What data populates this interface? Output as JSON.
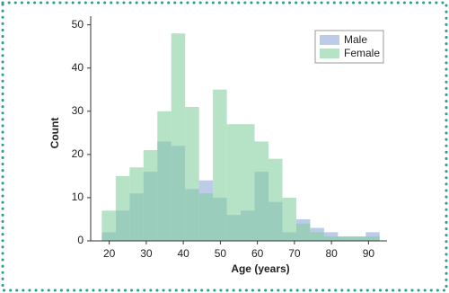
{
  "chart_data": {
    "type": "histogram",
    "x_label": "Age (years)",
    "y_label": "Count",
    "bins": [
      18,
      21.75,
      25.5,
      29.25,
      33,
      36.75,
      40.5,
      44.25,
      48,
      51.75,
      55.5,
      59.25,
      63,
      66.75,
      70.5,
      74.25,
      78,
      81.75,
      85.5,
      89.25,
      93
    ],
    "series": [
      {
        "name": "Male",
        "color": "#8fa8d8",
        "values": [
          2,
          7,
          11,
          16,
          23,
          22,
          12,
          14,
          10,
          6,
          7,
          16,
          9,
          2,
          5,
          3,
          2,
          1,
          1,
          2
        ]
      },
      {
        "name": "Female",
        "color": "#86cfa0",
        "values": [
          7,
          15,
          17,
          21,
          30,
          48,
          31,
          11,
          35,
          27,
          27,
          23,
          19,
          10,
          4,
          2,
          1,
          1,
          1,
          1
        ]
      }
    ],
    "xlim": [
      15,
      95
    ],
    "ylim": [
      0,
      52
    ],
    "xticks": [
      20,
      30,
      40,
      50,
      60,
      70,
      80,
      90
    ],
    "yticks": [
      0,
      10,
      20,
      30,
      40,
      50
    ],
    "legend": "upper right"
  }
}
